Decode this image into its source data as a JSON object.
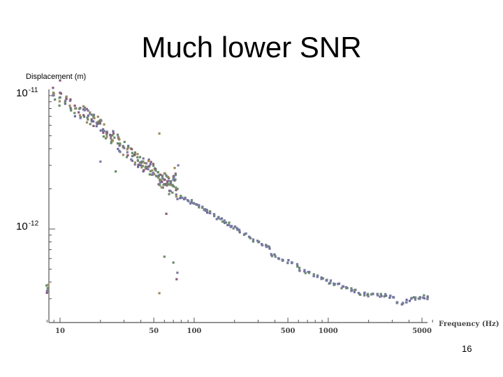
{
  "slide": {
    "title": "Much lower SNR",
    "page_number": "16"
  },
  "colors": {
    "axis": "#555555",
    "point_main": "#6a6a9a",
    "point_alts": [
      "#8a5a7a",
      "#6a8a6a",
      "#7a7aa6",
      "#a08a5a"
    ]
  },
  "chart_data": {
    "type": "scatter",
    "title": "",
    "xlabel": "Frequency (Hz)",
    "ylabel": "Displacement (m)",
    "xscale": "log",
    "yscale": "log",
    "xlim": [
      8,
      6000
    ],
    "ylim": [
      2.5e-13,
      1.3e-11
    ],
    "grid": false,
    "legend": "none",
    "x_ticks": [
      10,
      50,
      100,
      500,
      1000,
      5000
    ],
    "x_tick_labels": [
      "10",
      "50",
      "100",
      "500",
      "1000",
      "5000"
    ],
    "y_ticks": [
      {
        "value": 1e-11,
        "base": "10",
        "exp": "-11"
      },
      {
        "value": 1e-12,
        "base": "10",
        "exp": "-12"
      }
    ],
    "series": [
      {
        "points": [
          [
            8,
            3.4e-13
          ],
          [
            9,
            1.05e-11
          ],
          [
            10,
            9.5e-12
          ],
          [
            11,
            8.8e-12
          ],
          [
            12,
            8.3e-12
          ],
          [
            13,
            7.9e-12
          ],
          [
            14,
            7.6e-12
          ],
          [
            15,
            7.3e-12
          ],
          [
            16,
            7e-12
          ],
          [
            17,
            6.7e-12
          ],
          [
            18,
            6.4e-12
          ],
          [
            19,
            6.1e-12
          ],
          [
            20,
            5.8e-12
          ],
          [
            21,
            5.5e-12
          ],
          [
            22,
            5.3e-12
          ],
          [
            24,
            5e-12
          ],
          [
            25,
            4.8e-12
          ],
          [
            27,
            4.5e-12
          ],
          [
            28,
            4.2e-12
          ],
          [
            30,
            4e-12
          ],
          [
            32,
            3.8e-12
          ],
          [
            34,
            3.6e-12
          ],
          [
            36,
            3.4e-12
          ],
          [
            38,
            3.3e-12
          ],
          [
            40,
            3.1e-12
          ],
          [
            42,
            3e-12
          ],
          [
            44,
            2.9e-12
          ],
          [
            46,
            2.9e-12
          ],
          [
            48,
            2.8e-12
          ],
          [
            50,
            2.7e-12
          ],
          [
            52,
            2.5e-12
          ],
          [
            54,
            2.4e-12
          ],
          [
            56,
            2.3e-12
          ],
          [
            58,
            2.2e-12
          ],
          [
            60,
            2.3e-12
          ],
          [
            62,
            2.4e-12
          ],
          [
            64,
            2.2e-12
          ],
          [
            66,
            2e-12
          ],
          [
            68,
            2e-12
          ],
          [
            70,
            2.2e-12
          ],
          [
            72,
            2.6e-12
          ],
          [
            74,
            1.9e-12
          ],
          [
            80,
            1.75e-12
          ],
          [
            85,
            1.7e-12
          ],
          [
            90,
            1.65e-12
          ],
          [
            95,
            1.6e-12
          ],
          [
            100,
            1.55e-12
          ],
          [
            105,
            1.5e-12
          ],
          [
            110,
            1.47e-12
          ],
          [
            115,
            1.43e-12
          ],
          [
            120,
            1.4e-12
          ],
          [
            125,
            1.36e-12
          ],
          [
            130,
            1.33e-12
          ],
          [
            140,
            1.28e-12
          ],
          [
            150,
            1.22e-12
          ],
          [
            160,
            1.17e-12
          ],
          [
            170,
            1.13e-12
          ],
          [
            180,
            1.09e-12
          ],
          [
            190,
            1.05e-12
          ],
          [
            200,
            1.02e-12
          ],
          [
            210,
            9.9e-13
          ],
          [
            220,
            9.6e-13
          ],
          [
            240,
            9.1e-13
          ],
          [
            260,
            8.6e-13
          ],
          [
            280,
            8.3e-13
          ],
          [
            300,
            8e-13
          ],
          [
            320,
            7.7e-13
          ],
          [
            340,
            7.4e-13
          ],
          [
            360,
            7.2e-13
          ],
          [
            380,
            6.4e-13
          ],
          [
            400,
            6.3e-13
          ],
          [
            430,
            6.1e-13
          ],
          [
            460,
            5.9e-13
          ],
          [
            500,
            5.7e-13
          ],
          [
            540,
            5.6e-13
          ],
          [
            580,
            5.3e-13
          ],
          [
            620,
            5e-13
          ],
          [
            670,
            4.8e-13
          ],
          [
            720,
            4.7e-13
          ],
          [
            780,
            4.5e-13
          ],
          [
            840,
            4.4e-13
          ],
          [
            900,
            4.2e-13
          ],
          [
            960,
            4.1e-13
          ],
          [
            1030,
            4e-13
          ],
          [
            1110,
            3.9e-13
          ],
          [
            1190,
            3.8e-13
          ],
          [
            1280,
            3.7e-13
          ],
          [
            1380,
            3.6e-13
          ],
          [
            1480,
            3.5e-13
          ],
          [
            1590,
            3.4e-13
          ],
          [
            1710,
            3.3e-13
          ],
          [
            1840,
            3.25e-13
          ],
          [
            1980,
            3.2e-13
          ],
          [
            2130,
            3.2e-13
          ],
          [
            2300,
            3.25e-13
          ],
          [
            2470,
            3.2e-13
          ],
          [
            2660,
            3.15e-13
          ],
          [
            2860,
            3.1e-13
          ],
          [
            3080,
            3e-13
          ],
          [
            3310,
            2.85e-13
          ],
          [
            3560,
            2.8e-13
          ],
          [
            3830,
            2.9e-13
          ],
          [
            4120,
            2.95e-13
          ],
          [
            4430,
            3e-13
          ],
          [
            4770,
            3.05e-13
          ],
          [
            5130,
            3.1e-13
          ],
          [
            5500,
            3.05e-13
          ]
        ]
      }
    ]
  }
}
